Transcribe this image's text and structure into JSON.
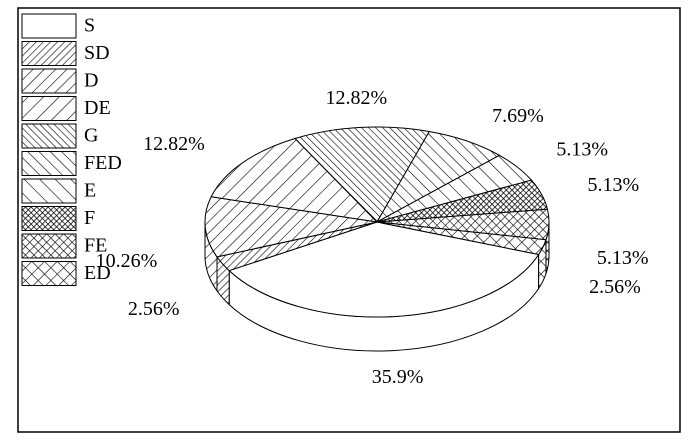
{
  "chart_data": {
    "type": "pie",
    "categories": [
      "S",
      "SD",
      "D",
      "DE",
      "G",
      "FED",
      "E",
      "F",
      "FE",
      "ED"
    ],
    "values": [
      35.9,
      2.56,
      10.26,
      12.82,
      12.82,
      7.69,
      5.13,
      5.13,
      5.13,
      2.56
    ],
    "value_labels": [
      "35.9%",
      "2.56%",
      "10.26%",
      "12.82%",
      "12.82%",
      "7.69%",
      "5.13%",
      "5.13%",
      "5.13%",
      "2.56%"
    ],
    "hatches": [
      "none",
      "fwd-dense",
      "fwd-mid",
      "fwd-wide",
      "back-dense",
      "back-mid",
      "back-wide",
      "cross-dense",
      "cross-mid",
      "cross-wide"
    ],
    "legend": "top-left"
  }
}
